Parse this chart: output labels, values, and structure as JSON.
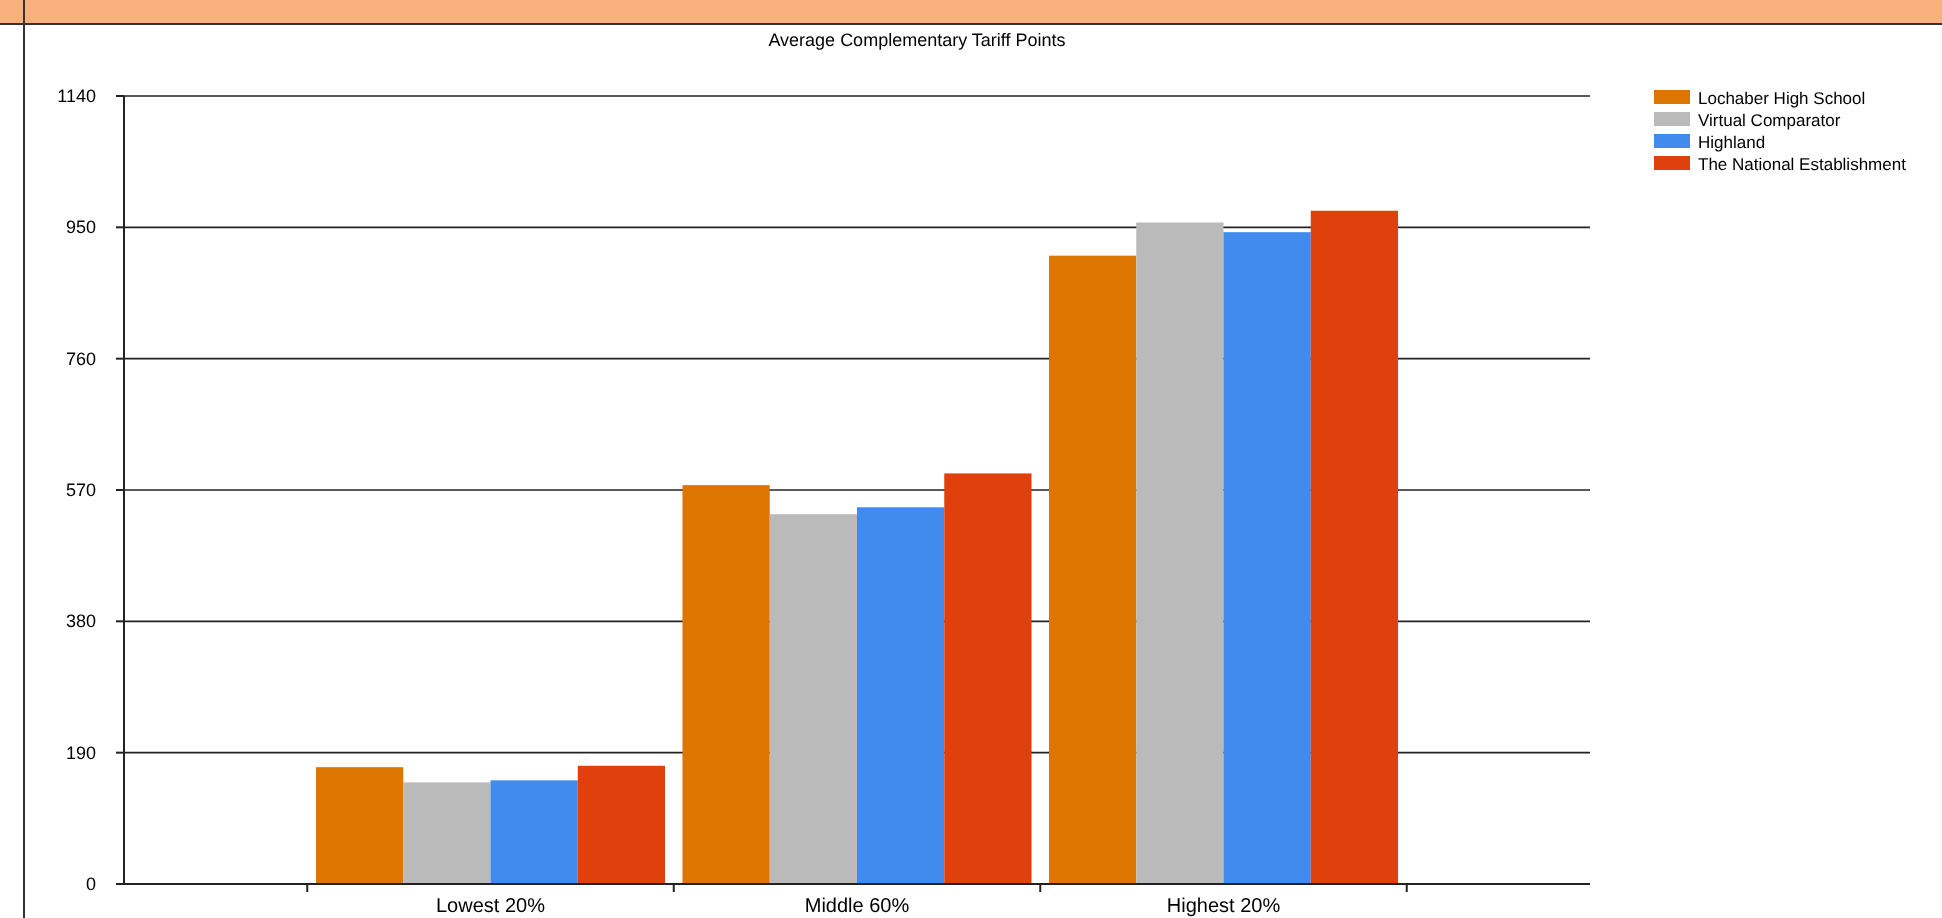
{
  "chart_data": {
    "type": "bar",
    "title": "Average Complementary Tariff Points",
    "categories": [
      "Lowest 20%",
      "Middle 60%",
      "Highest 20%"
    ],
    "series": [
      {
        "name": "Lochaber High School",
        "color": "#dc7600",
        "values": [
          169,
          577,
          909
        ]
      },
      {
        "name": "Virtual Comparator",
        "color": "#bababa",
        "values": [
          147,
          535,
          957
        ]
      },
      {
        "name": "Highland",
        "color": "#418bee",
        "values": [
          150,
          545,
          943
        ]
      },
      {
        "name": "The National Establishment",
        "color": "#e0400c",
        "values": [
          171,
          594,
          974
        ]
      }
    ],
    "ylim": [
      0,
      1140
    ],
    "yticks": [
      0,
      190,
      380,
      570,
      760,
      950,
      1140
    ],
    "grid": "y",
    "legend": "top right"
  }
}
